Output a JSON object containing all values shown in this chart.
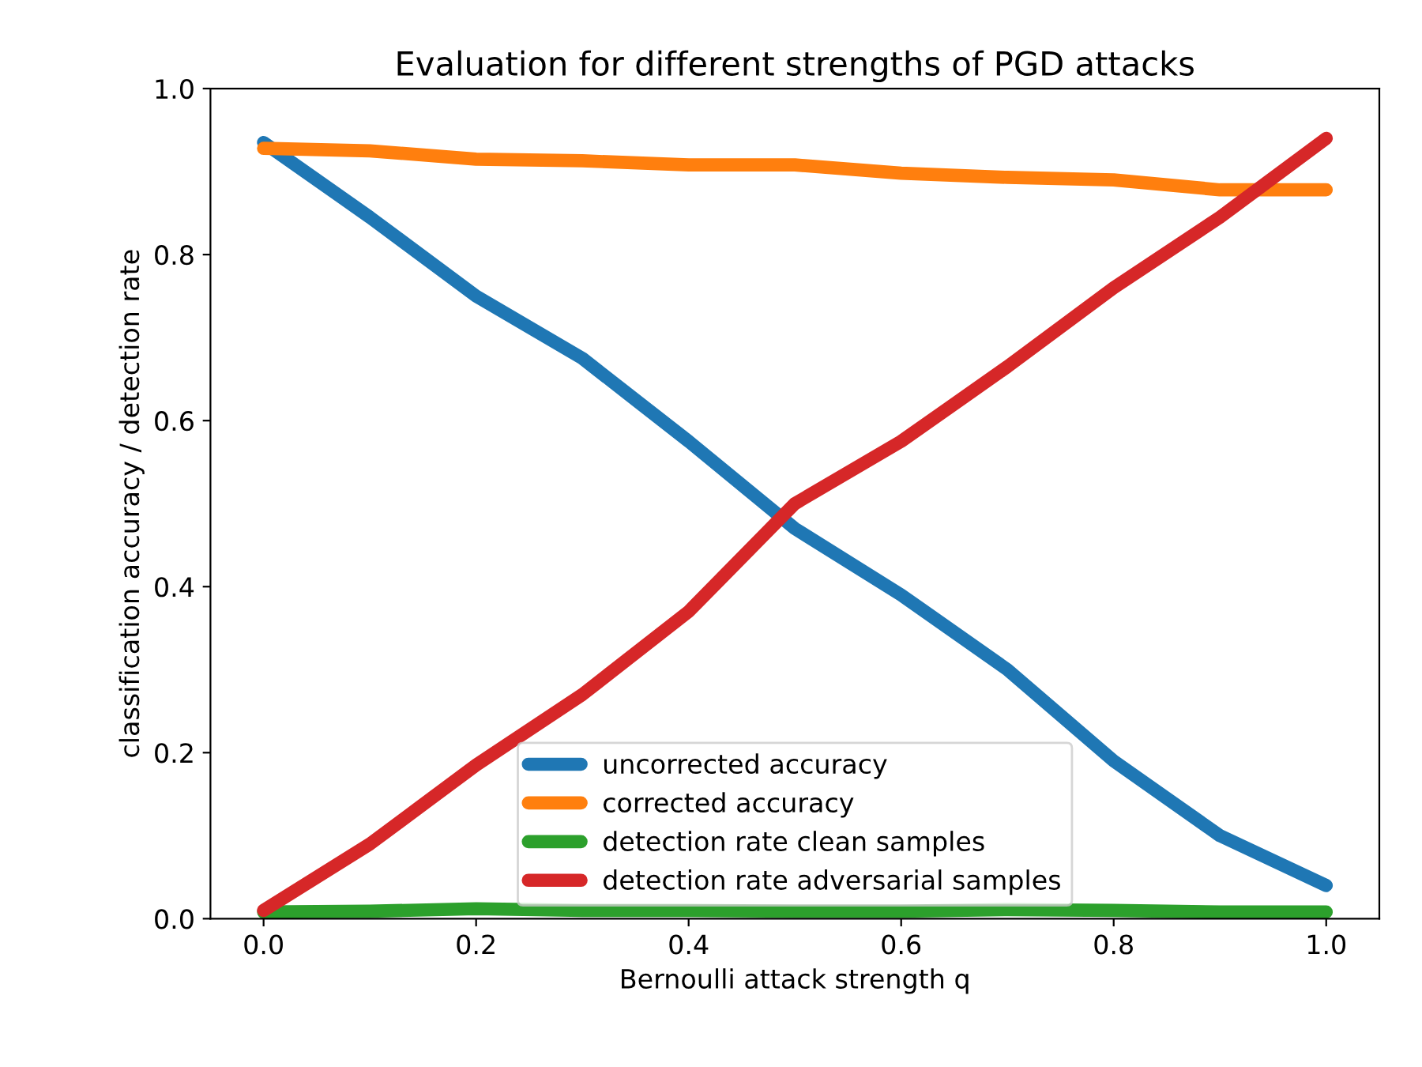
{
  "chart_data": {
    "type": "line",
    "title": "Evaluation for different strengths of PGD attacks",
    "xlabel": "Bernoulli attack strength q",
    "ylabel": "classification accuracy / detection rate",
    "x": [
      0.0,
      0.1,
      0.2,
      0.3,
      0.4,
      0.5,
      0.6,
      0.7,
      0.8,
      0.9,
      1.0
    ],
    "series": [
      {
        "name": "uncorrected accuracy",
        "color": "#1f77b4",
        "values": [
          0.935,
          0.845,
          0.75,
          0.675,
          0.575,
          0.47,
          0.39,
          0.3,
          0.19,
          0.1,
          0.04
        ]
      },
      {
        "name": "corrected accuracy",
        "color": "#ff7f0e",
        "values": [
          0.928,
          0.925,
          0.915,
          0.913,
          0.908,
          0.908,
          0.898,
          0.893,
          0.89,
          0.878,
          0.878
        ]
      },
      {
        "name": "detection rate clean samples",
        "color": "#2ca02c",
        "values": [
          0.008,
          0.009,
          0.012,
          0.01,
          0.01,
          0.009,
          0.009,
          0.011,
          0.01,
          0.008,
          0.008
        ]
      },
      {
        "name": "detection rate adversarial samples",
        "color": "#d62728",
        "values": [
          0.01,
          0.09,
          0.185,
          0.27,
          0.37,
          0.5,
          0.575,
          0.665,
          0.76,
          0.845,
          0.94
        ]
      }
    ],
    "xlim": [
      -0.05,
      1.05
    ],
    "ylim": [
      0.0,
      1.0
    ],
    "xticks": [
      {
        "value": 0.0,
        "label": "0.0"
      },
      {
        "value": 0.2,
        "label": "0.2"
      },
      {
        "value": 0.4,
        "label": "0.4"
      },
      {
        "value": 0.6,
        "label": "0.6"
      },
      {
        "value": 0.8,
        "label": "0.8"
      },
      {
        "value": 1.0,
        "label": "1.0"
      }
    ],
    "yticks": [
      {
        "value": 0.0,
        "label": "0.0"
      },
      {
        "value": 0.2,
        "label": "0.2"
      },
      {
        "value": 0.4,
        "label": "0.4"
      },
      {
        "value": 0.6,
        "label": "0.6"
      },
      {
        "value": 0.8,
        "label": "0.8"
      },
      {
        "value": 1.0,
        "label": "1.0"
      }
    ],
    "grid": false,
    "legend": "bottom",
    "line_style": "solid"
  }
}
